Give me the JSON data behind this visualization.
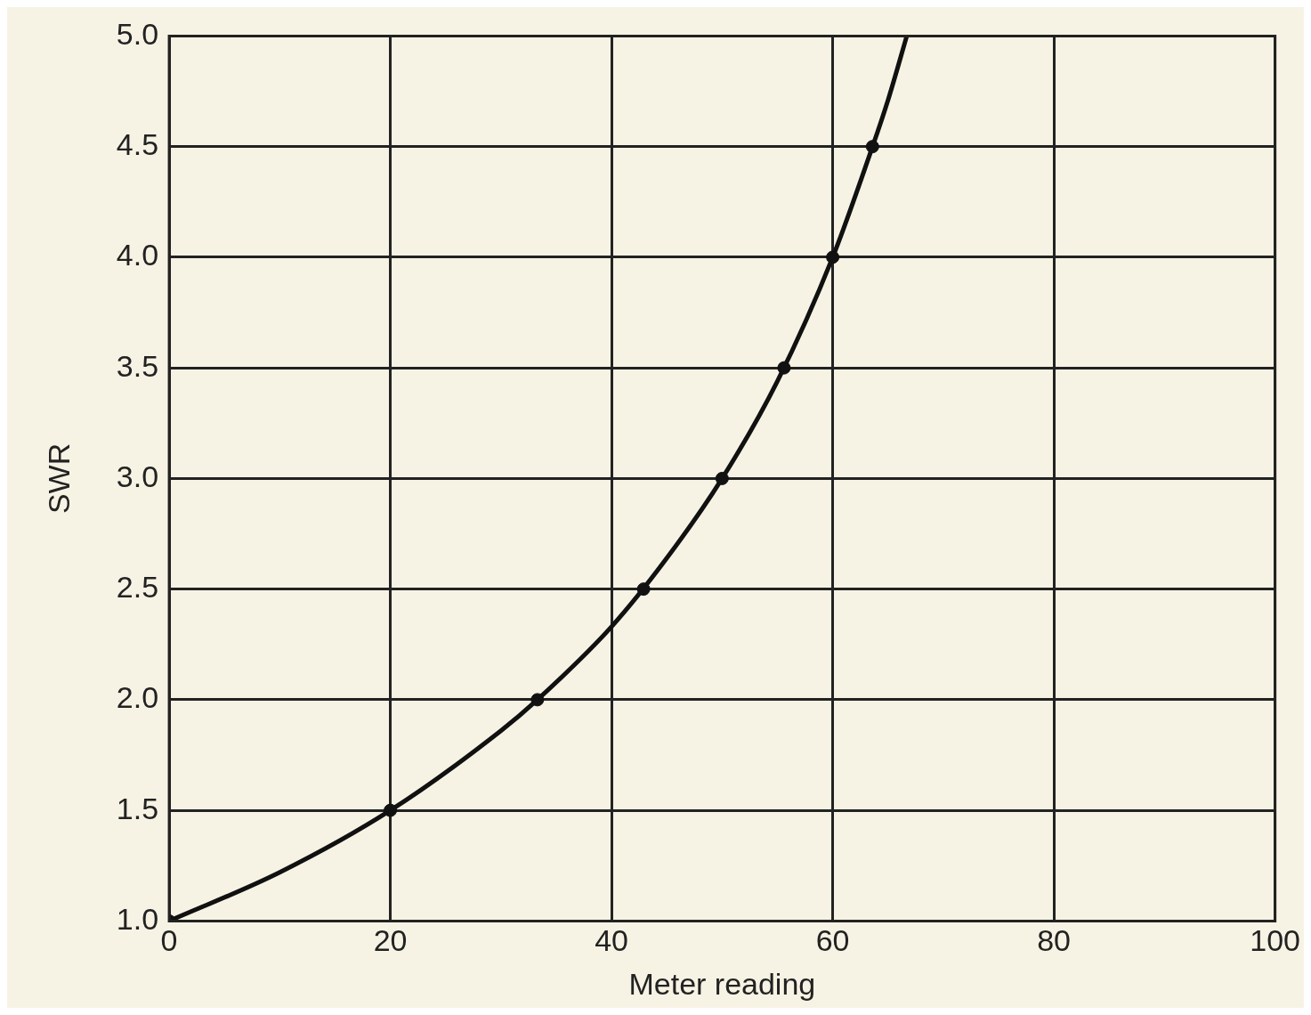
{
  "chart_data": {
    "type": "line",
    "xlabel": "Meter reading",
    "ylabel": "SWR",
    "series": [
      {
        "type": "line",
        "color": "#111111",
        "marker": "none",
        "x": [
          0,
          10,
          20,
          30,
          33.3,
          40,
          45,
          50,
          55,
          60,
          63.6,
          65,
          66.7
        ],
        "values": [
          1.0,
          1.22,
          1.5,
          1.86,
          2.0,
          2.33,
          2.64,
          3.0,
          3.44,
          4.0,
          4.5,
          4.71,
          5.0
        ]
      },
      {
        "type": "scatter",
        "color": "#111111",
        "marker": "circle",
        "x": [
          0,
          20,
          33.3,
          42.9,
          50,
          55.6,
          60,
          63.6
        ],
        "values": [
          1.0,
          1.5,
          2.0,
          2.5,
          3.0,
          3.5,
          4.0,
          4.5
        ]
      }
    ],
    "xlim": [
      0,
      100
    ],
    "xticks": [
      0,
      20,
      40,
      60,
      80,
      100
    ],
    "ylim": [
      1,
      5
    ],
    "yticks": [
      {
        "value": 1,
        "label": "1.0"
      },
      {
        "value": 1.5,
        "label": "1.5"
      },
      {
        "value": 2,
        "label": "2.0"
      },
      {
        "value": 2.5,
        "label": "2.5"
      },
      {
        "value": 3,
        "label": "3.0"
      },
      {
        "value": 3.5,
        "label": "3.5"
      },
      {
        "value": 4,
        "label": "4.0"
      },
      {
        "value": 4.5,
        "label": "4.5"
      },
      {
        "value": 5,
        "label": "5.0"
      }
    ],
    "grid": true,
    "legend": false
  }
}
